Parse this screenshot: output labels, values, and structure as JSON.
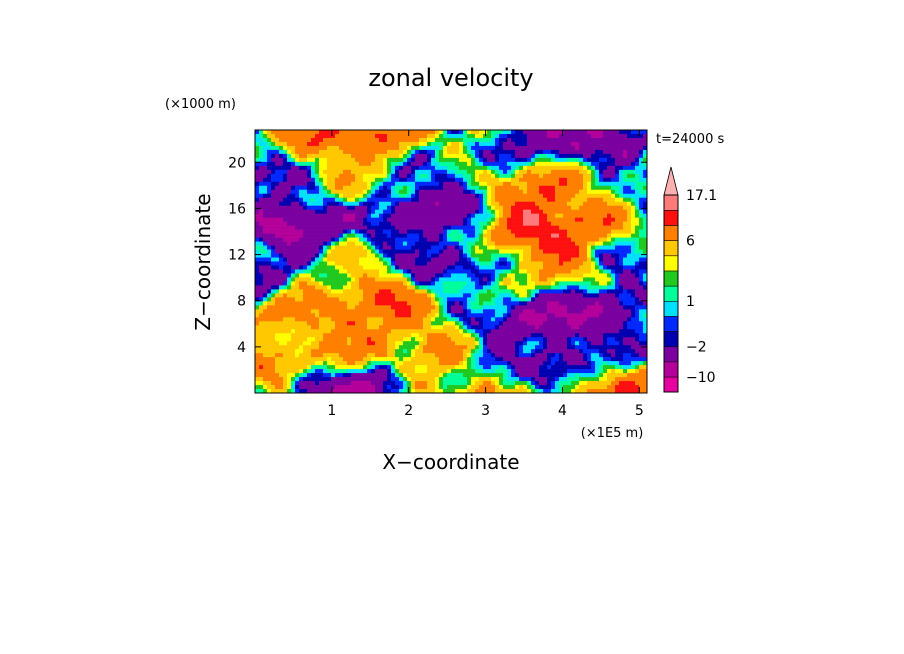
{
  "chart_data": {
    "type": "heatmap",
    "title": "zonal velocity",
    "xlabel": "X−coordinate",
    "ylabel": "Z−coordinate",
    "x_unit": "(×1E5 m)",
    "y_unit": "(×1000 m)",
    "time_label": "t=24000 s",
    "x_ticks": [
      "1",
      "2",
      "3",
      "4",
      "5"
    ],
    "y_ticks": [
      "4",
      "8",
      "12",
      "16",
      "20"
    ],
    "xlim": [
      0,
      5.1
    ],
    "ylim": [
      0,
      22.8
    ],
    "colorbar": {
      "levels_low_to_high": [
        -14,
        -10,
        -6,
        -2,
        -1,
        0,
        1,
        2,
        3,
        4,
        6,
        10,
        14,
        17.1
      ],
      "colors_low_to_high": [
        "#e600a0",
        "#b4009a",
        "#7a00a0",
        "#0000b0",
        "#0028ff",
        "#00e0ff",
        "#00ff9a",
        "#20c820",
        "#ffff00",
        "#ffc800",
        "#ff8000",
        "#ff1010",
        "#ff7a7a",
        "#ffb0b0"
      ],
      "labels": [
        "17.1",
        "6",
        "1",
        "−2",
        "−10"
      ]
    },
    "legend_placement": "right"
  }
}
